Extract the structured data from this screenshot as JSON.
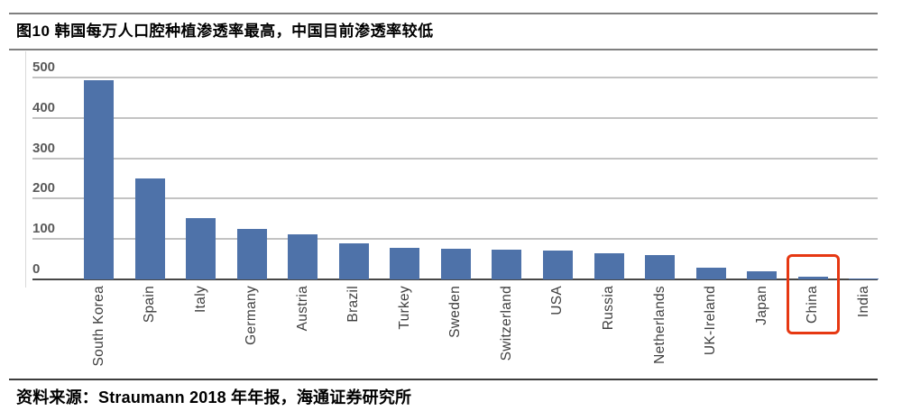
{
  "figure": {
    "title": "图10 韩国每万人口腔种植渗透率最高，中国目前渗透率较低",
    "source": "资料来源：Straumann 2018 年年报，海通证券研究所"
  },
  "chart_data": {
    "type": "bar",
    "title": "图10 韩国每万人口腔种植渗透率最高，中国目前渗透率较低",
    "categories": [
      "South Korea",
      "Spain",
      "Italy",
      "Germany",
      "Austria",
      "Brazil",
      "Turkey",
      "Sweden",
      "Switzerland",
      "USA",
      "Russia",
      "Netherlands",
      "UK-Ireland",
      "Japan",
      "China",
      "India"
    ],
    "values": [
      493,
      250,
      152,
      125,
      112,
      89,
      78,
      76,
      73,
      71,
      64,
      60,
      29,
      21,
      7,
      2
    ],
    "xlabel": "",
    "ylabel": "",
    "ylim": [
      0,
      500
    ],
    "yticks": [
      0,
      100,
      200,
      300,
      400,
      500
    ],
    "grid": true,
    "legend": false,
    "bar_color": "#4e72a9",
    "axis_color": "#474747",
    "gridline_color": "#c3c3c3",
    "tick_label_color": "#595959",
    "category_label_color": "#3f3f3f",
    "highlight": {
      "category": "China",
      "color": "#e63812"
    }
  },
  "colors": {
    "title_divider": "#7f7f7f",
    "footer_divider": "#3d3d3d",
    "background": "#ffffff"
  }
}
